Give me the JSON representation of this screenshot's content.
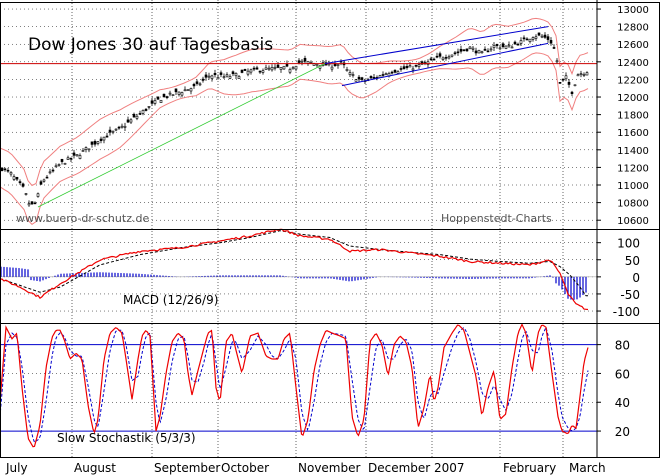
{
  "chart_data": [
    {
      "type": "candlestick",
      "title": "Dow Jones 30 auf Tagesbasis",
      "watermark_left": "www.buero-dr-schutz.de",
      "watermark_right": "Hoppenstedt-Charts",
      "y_ticks": [
        10600,
        10800,
        11000,
        11200,
        11400,
        11600,
        11800,
        12000,
        12200,
        12400,
        12600,
        12800,
        13000
      ],
      "ylim": [
        10500,
        13080
      ],
      "horizontal_line": 12380,
      "price_anchors": [
        [
          0,
          11200
        ],
        [
          10,
          11140
        ],
        [
          24,
          10950
        ],
        [
          30,
          10760
        ],
        [
          36,
          10800
        ],
        [
          42,
          11040
        ],
        [
          60,
          11240
        ],
        [
          78,
          11340
        ],
        [
          100,
          11520
        ],
        [
          120,
          11640
        ],
        [
          140,
          11810
        ],
        [
          160,
          11980
        ],
        [
          180,
          12060
        ],
        [
          196,
          12120
        ],
        [
          210,
          12250
        ],
        [
          224,
          12230
        ],
        [
          236,
          12250
        ],
        [
          252,
          12300
        ],
        [
          270,
          12320
        ],
        [
          290,
          12330
        ],
        [
          300,
          12400
        ],
        [
          318,
          12380
        ],
        [
          330,
          12360
        ],
        [
          342,
          12380
        ],
        [
          350,
          12260
        ],
        [
          362,
          12180
        ],
        [
          376,
          12220
        ],
        [
          390,
          12290
        ],
        [
          404,
          12320
        ],
        [
          418,
          12350
        ],
        [
          430,
          12400
        ],
        [
          440,
          12450
        ],
        [
          456,
          12500
        ],
        [
          470,
          12560
        ],
        [
          482,
          12490
        ],
        [
          494,
          12580
        ],
        [
          508,
          12570
        ],
        [
          522,
          12630
        ],
        [
          534,
          12700
        ],
        [
          542,
          12690
        ],
        [
          550,
          12650
        ],
        [
          556,
          12500
        ],
        [
          560,
          12150
        ],
        [
          566,
          12220
        ],
        [
          572,
          12060
        ],
        [
          578,
          12260
        ],
        [
          584,
          12280
        ],
        [
          588,
          12300
        ]
      ]
    },
    {
      "type": "line",
      "title": "MACD (12/26/9)",
      "y_ticks": [
        100,
        50,
        0,
        -50,
        -100
      ],
      "ylim": [
        -135,
        140
      ],
      "macd_anchors": [
        [
          0,
          -5
        ],
        [
          20,
          -30
        ],
        [
          40,
          -60
        ],
        [
          60,
          -20
        ],
        [
          100,
          50
        ],
        [
          140,
          75
        ],
        [
          180,
          85
        ],
        [
          220,
          105
        ],
        [
          250,
          120
        ],
        [
          280,
          140
        ],
        [
          300,
          120
        ],
        [
          330,
          110
        ],
        [
          350,
          75
        ],
        [
          380,
          80
        ],
        [
          410,
          70
        ],
        [
          440,
          60
        ],
        [
          470,
          45
        ],
        [
          500,
          40
        ],
        [
          530,
          35
        ],
        [
          550,
          50
        ],
        [
          560,
          10
        ],
        [
          568,
          -50
        ],
        [
          576,
          -80
        ],
        [
          586,
          -95
        ]
      ],
      "signal_anchors": [
        [
          0,
          -5
        ],
        [
          20,
          -25
        ],
        [
          40,
          -45
        ],
        [
          60,
          -30
        ],
        [
          100,
          35
        ],
        [
          140,
          65
        ],
        [
          180,
          85
        ],
        [
          220,
          100
        ],
        [
          250,
          115
        ],
        [
          280,
          135
        ],
        [
          300,
          125
        ],
        [
          330,
          115
        ],
        [
          350,
          90
        ],
        [
          380,
          80
        ],
        [
          410,
          72
        ],
        [
          440,
          65
        ],
        [
          470,
          52
        ],
        [
          500,
          45
        ],
        [
          530,
          40
        ],
        [
          550,
          45
        ],
        [
          560,
          30
        ],
        [
          570,
          5
        ],
        [
          580,
          -30
        ],
        [
          586,
          -55
        ]
      ]
    },
    {
      "type": "line",
      "title": "Slow Stochastik (5/3/3)",
      "y_ticks": [
        80,
        60,
        40,
        20
      ],
      "ylim": [
        2,
        95
      ],
      "reference_lines": [
        80,
        20
      ],
      "k_anchors": [
        [
          0,
          40
        ],
        [
          6,
          92
        ],
        [
          12,
          84
        ],
        [
          17,
          88
        ],
        [
          22,
          50
        ],
        [
          28,
          15
        ],
        [
          34,
          8
        ],
        [
          40,
          24
        ],
        [
          46,
          64
        ],
        [
          52,
          85
        ],
        [
          56,
          90
        ],
        [
          60,
          90
        ],
        [
          64,
          84
        ],
        [
          70,
          70
        ],
        [
          76,
          74
        ],
        [
          82,
          70
        ],
        [
          88,
          38
        ],
        [
          94,
          18
        ],
        [
          98,
          28
        ],
        [
          104,
          70
        ],
        [
          110,
          88
        ],
        [
          116,
          92
        ],
        [
          122,
          88
        ],
        [
          126,
          70
        ],
        [
          132,
          42
        ],
        [
          138,
          70
        ],
        [
          142,
          86
        ],
        [
          146,
          90
        ],
        [
          150,
          86
        ],
        [
          156,
          20
        ],
        [
          160,
          30
        ],
        [
          166,
          60
        ],
        [
          172,
          82
        ],
        [
          178,
          88
        ],
        [
          184,
          84
        ],
        [
          188,
          60
        ],
        [
          192,
          45
        ],
        [
          198,
          62
        ],
        [
          204,
          78
        ],
        [
          208,
          88
        ],
        [
          212,
          90
        ],
        [
          216,
          50
        ],
        [
          220,
          40
        ],
        [
          226,
          82
        ],
        [
          232,
          88
        ],
        [
          236,
          76
        ],
        [
          242,
          60
        ],
        [
          250,
          86
        ],
        [
          258,
          88
        ],
        [
          266,
          72
        ],
        [
          272,
          70
        ],
        [
          278,
          70
        ],
        [
          284,
          84
        ],
        [
          290,
          88
        ],
        [
          296,
          50
        ],
        [
          302,
          15
        ],
        [
          308,
          28
        ],
        [
          314,
          62
        ],
        [
          320,
          80
        ],
        [
          326,
          90
        ],
        [
          332,
          88
        ],
        [
          340,
          86
        ],
        [
          346,
          84
        ],
        [
          352,
          30
        ],
        [
          358,
          16
        ],
        [
          364,
          28
        ],
        [
          370,
          82
        ],
        [
          376,
          88
        ],
        [
          382,
          80
        ],
        [
          388,
          58
        ],
        [
          394,
          80
        ],
        [
          400,
          86
        ],
        [
          406,
          82
        ],
        [
          412,
          64
        ],
        [
          418,
          22
        ],
        [
          424,
          36
        ],
        [
          430,
          60
        ],
        [
          434,
          40
        ],
        [
          438,
          50
        ],
        [
          444,
          78
        ],
        [
          452,
          88
        ],
        [
          458,
          94
        ],
        [
          464,
          90
        ],
        [
          470,
          74
        ],
        [
          476,
          58
        ],
        [
          482,
          30
        ],
        [
          488,
          50
        ],
        [
          494,
          62
        ],
        [
          500,
          28
        ],
        [
          506,
          32
        ],
        [
          512,
          64
        ],
        [
          518,
          88
        ],
        [
          522,
          94
        ],
        [
          526,
          88
        ],
        [
          532,
          60
        ],
        [
          538,
          88
        ],
        [
          542,
          94
        ],
        [
          546,
          92
        ],
        [
          552,
          60
        ],
        [
          558,
          30
        ],
        [
          562,
          20
        ],
        [
          568,
          18
        ],
        [
          572,
          24
        ],
        [
          576,
          22
        ],
        [
          580,
          44
        ],
        [
          584,
          68
        ],
        [
          588,
          78
        ]
      ],
      "d_anchors": [
        [
          0,
          30
        ],
        [
          6,
          80
        ],
        [
          12,
          88
        ],
        [
          17,
          85
        ],
        [
          22,
          65
        ],
        [
          28,
          30
        ],
        [
          34,
          12
        ],
        [
          40,
          15
        ],
        [
          46,
          40
        ],
        [
          52,
          72
        ],
        [
          56,
          85
        ],
        [
          60,
          88
        ],
        [
          64,
          86
        ],
        [
          70,
          76
        ],
        [
          76,
          72
        ],
        [
          82,
          72
        ],
        [
          88,
          52
        ],
        [
          94,
          28
        ],
        [
          98,
          22
        ],
        [
          104,
          48
        ],
        [
          110,
          76
        ],
        [
          116,
          90
        ],
        [
          122,
          90
        ],
        [
          126,
          80
        ],
        [
          132,
          55
        ],
        [
          138,
          58
        ],
        [
          142,
          74
        ],
        [
          146,
          86
        ],
        [
          150,
          88
        ],
        [
          156,
          40
        ],
        [
          160,
          25
        ],
        [
          166,
          42
        ],
        [
          172,
          68
        ],
        [
          178,
          84
        ],
        [
          184,
          86
        ],
        [
          188,
          72
        ],
        [
          192,
          55
        ],
        [
          198,
          54
        ],
        [
          204,
          68
        ],
        [
          208,
          80
        ],
        [
          212,
          88
        ],
        [
          216,
          68
        ],
        [
          220,
          48
        ],
        [
          226,
          64
        ],
        [
          232,
          82
        ],
        [
          236,
          82
        ],
        [
          242,
          70
        ],
        [
          250,
          76
        ],
        [
          258,
          86
        ],
        [
          266,
          80
        ],
        [
          272,
          72
        ],
        [
          278,
          70
        ],
        [
          284,
          76
        ],
        [
          290,
          84
        ],
        [
          296,
          70
        ],
        [
          302,
          32
        ],
        [
          308,
          20
        ],
        [
          314,
          40
        ],
        [
          320,
          66
        ],
        [
          326,
          82
        ],
        [
          332,
          88
        ],
        [
          340,
          87
        ],
        [
          346,
          86
        ],
        [
          352,
          56
        ],
        [
          358,
          28
        ],
        [
          364,
          20
        ],
        [
          370,
          50
        ],
        [
          376,
          78
        ],
        [
          382,
          84
        ],
        [
          388,
          70
        ],
        [
          394,
          70
        ],
        [
          400,
          80
        ],
        [
          406,
          84
        ],
        [
          412,
          76
        ],
        [
          418,
          40
        ],
        [
          424,
          28
        ],
        [
          430,
          44
        ],
        [
          434,
          48
        ],
        [
          438,
          46
        ],
        [
          444,
          60
        ],
        [
          452,
          78
        ],
        [
          458,
          88
        ],
        [
          464,
          92
        ],
        [
          470,
          84
        ],
        [
          476,
          68
        ],
        [
          482,
          46
        ],
        [
          488,
          42
        ],
        [
          494,
          52
        ],
        [
          500,
          42
        ],
        [
          506,
          34
        ],
        [
          512,
          46
        ],
        [
          518,
          70
        ],
        [
          522,
          84
        ],
        [
          526,
          90
        ],
        [
          532,
          76
        ],
        [
          538,
          74
        ],
        [
          542,
          86
        ],
        [
          546,
          92
        ],
        [
          552,
          76
        ],
        [
          558,
          46
        ],
        [
          562,
          30
        ],
        [
          568,
          22
        ],
        [
          572,
          20
        ],
        [
          576,
          22
        ],
        [
          580,
          30
        ],
        [
          584,
          48
        ],
        [
          588,
          62
        ]
      ]
    }
  ],
  "x_month_labels": [
    "July",
    "August",
    "September",
    "October",
    "November",
    "December",
    "2007",
    "February",
    "March"
  ],
  "colors": {
    "frame": "#000000",
    "grid": "#000000",
    "candle": "#000000",
    "band": "#f08080",
    "trend_green": "#33cc33",
    "channel_blue": "#0000cc",
    "hline_red": "#cc0000",
    "macd_red": "#ee0000",
    "hist_blue": "#0000cc",
    "stoch_blue": "#0000cc"
  }
}
